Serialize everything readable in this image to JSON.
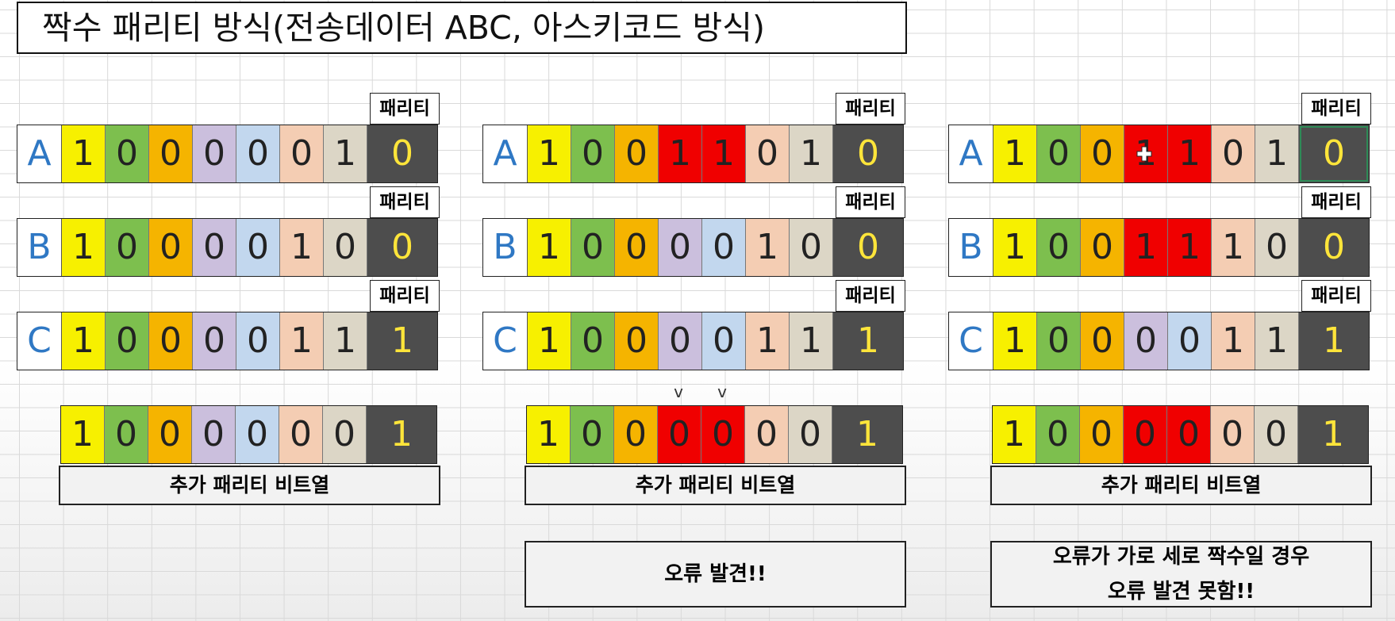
{
  "title": "짝수 패리티 방식(전송데이터 ABC, 아스키코드 방식)",
  "colors": {
    "col_fills": [
      "#f7f000",
      "#7dbf4e",
      "#f5b400",
      "#cbbfdd",
      "#c2d7ee",
      "#f4cdb3",
      "#dcd6c6"
    ],
    "error": "#f00000",
    "parity_bg": "#4d4d4d",
    "parity_text": "#ffe53a",
    "row_label": "#2f78c4"
  },
  "panels": [
    {
      "rows": [
        {
          "label": "A",
          "parity_label": "패리티",
          "bits": [
            "1",
            "0",
            "0",
            "0",
            "0",
            "0",
            "1"
          ],
          "parity": "0",
          "errors": []
        },
        {
          "label": "B",
          "parity_label": "패리티",
          "bits": [
            "1",
            "0",
            "0",
            "0",
            "0",
            "1",
            "0"
          ],
          "parity": "0",
          "errors": []
        },
        {
          "label": "C",
          "parity_label": "패리티",
          "bits": [
            "1",
            "0",
            "0",
            "0",
            "0",
            "1",
            "1"
          ],
          "parity": "1",
          "errors": []
        }
      ],
      "extra_bits": [
        "1",
        "0",
        "0",
        "0",
        "0",
        "0",
        "0"
      ],
      "extra_parity": "1",
      "extra_errors": [],
      "marks": [],
      "caption": "추가 패리티 비트열",
      "note_lines": []
    },
    {
      "rows": [
        {
          "label": "A",
          "parity_label": "패리티",
          "bits": [
            "1",
            "0",
            "0",
            "1",
            "1",
            "0",
            "1"
          ],
          "parity": "0",
          "errors": [
            3,
            4
          ]
        },
        {
          "label": "B",
          "parity_label": "패리티",
          "bits": [
            "1",
            "0",
            "0",
            "0",
            "0",
            "1",
            "0"
          ],
          "parity": "0",
          "errors": []
        },
        {
          "label": "C",
          "parity_label": "패리티",
          "bits": [
            "1",
            "0",
            "0",
            "0",
            "0",
            "1",
            "1"
          ],
          "parity": "1",
          "errors": []
        }
      ],
      "extra_bits": [
        "1",
        "0",
        "0",
        "0",
        "0",
        "0",
        "0"
      ],
      "extra_parity": "1",
      "extra_errors": [
        3,
        4
      ],
      "marks": [
        "v",
        "v"
      ],
      "caption": "추가 패리티 비트열",
      "note_lines": [
        "오류 발견!!"
      ]
    },
    {
      "rows": [
        {
          "label": "A",
          "parity_label": "패리티",
          "bits": [
            "1",
            "0",
            "0",
            "1",
            "1",
            "0",
            "1"
          ],
          "parity": "0",
          "errors": [
            3,
            4
          ]
        },
        {
          "label": "B",
          "parity_label": "패리티",
          "bits": [
            "1",
            "0",
            "0",
            "1",
            "1",
            "1",
            "0"
          ],
          "parity": "0",
          "errors": [
            3,
            4
          ]
        },
        {
          "label": "C",
          "parity_label": "패리티",
          "bits": [
            "1",
            "0",
            "0",
            "0",
            "0",
            "1",
            "1"
          ],
          "parity": "1",
          "errors": []
        }
      ],
      "extra_bits": [
        "1",
        "0",
        "0",
        "0",
        "0",
        "0",
        "0"
      ],
      "extra_parity": "1",
      "extra_errors": [
        3,
        4
      ],
      "marks": [],
      "caption": "추가 패리티 비트열",
      "note_lines": [
        "오류가 가로 세로 짝수일 경우",
        "오류 발견 못함!!"
      ]
    }
  ],
  "cursor": {
    "icon": "cell-select-cursor-icon",
    "panel": 2,
    "row": 0,
    "col": 3
  }
}
